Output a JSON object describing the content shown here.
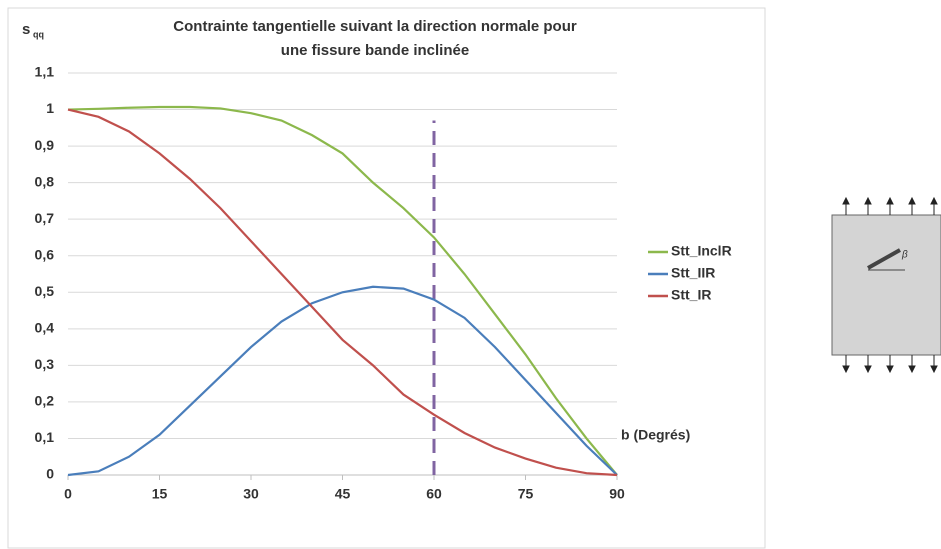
{
  "chart_data": {
    "type": "line",
    "title": "Contrainte tangentielle suivant la direction normale  pour",
    "title_line2": "une fissure bande inclinée",
    "y_label": "s",
    "y_label_sub": "qq",
    "x_label": "b (Degrés)",
    "inset_label": "β",
    "x": [
      0,
      5,
      10,
      15,
      20,
      25,
      30,
      35,
      40,
      45,
      50,
      55,
      60,
      65,
      70,
      75,
      80,
      85,
      90
    ],
    "series": [
      {
        "name": "Stt_InclR",
        "color": "#8cb84c",
        "values": [
          1,
          1.002,
          1.005,
          1.007,
          1.007,
          1.003,
          0.99,
          0.97,
          0.93,
          0.88,
          0.8,
          0.73,
          0.65,
          0.55,
          0.44,
          0.33,
          0.21,
          0.1,
          0
        ]
      },
      {
        "name": "Stt_IIR",
        "color": "#4a7ebb",
        "values": [
          0,
          0.01,
          0.05,
          0.11,
          0.19,
          0.27,
          0.35,
          0.42,
          0.47,
          0.5,
          0.515,
          0.51,
          0.48,
          0.43,
          0.35,
          0.26,
          0.17,
          0.08,
          0
        ]
      },
      {
        "name": "Stt_IR",
        "color": "#c0504d",
        "values": [
          1,
          0.98,
          0.94,
          0.88,
          0.81,
          0.73,
          0.64,
          0.55,
          0.46,
          0.37,
          0.3,
          0.22,
          0.165,
          0.115,
          0.075,
          0.045,
          0.02,
          0.005,
          0
        ]
      }
    ],
    "vline": {
      "x": 60,
      "top": 0.97,
      "color": "#8064a2"
    },
    "xlim": [
      0,
      90
    ],
    "xticks": [
      0,
      15,
      30,
      45,
      60,
      75,
      90
    ],
    "ylim": [
      0,
      1.1
    ],
    "yticks": [
      0,
      {
        "value": 0.1,
        "label": "0,1"
      },
      {
        "value": 0.2,
        "label": "0,2"
      },
      {
        "value": 0.3,
        "label": "0,3"
      },
      {
        "value": 0.4,
        "label": "0,4"
      },
      {
        "value": 0.5,
        "label": "0,5"
      },
      {
        "value": 0.6,
        "label": "0,6"
      },
      {
        "value": 0.7,
        "label": "0,7"
      },
      {
        "value": 0.8,
        "label": "0,8"
      },
      {
        "value": 0.9,
        "label": "0,9"
      },
      1,
      {
        "value": 1.1,
        "label": "1,1"
      }
    ],
    "grid": true,
    "legend": "right"
  }
}
